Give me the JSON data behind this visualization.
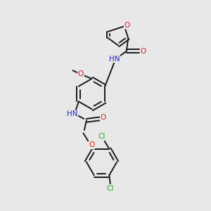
{
  "background_color": "#e8e8e8",
  "bond_color": "#1a1a1a",
  "atom_colors": {
    "N": "#2222cc",
    "O": "#cc2222",
    "Cl": "#22aa22",
    "H": "#555555"
  },
  "line_width": 1.4,
  "font_size": 7.5
}
